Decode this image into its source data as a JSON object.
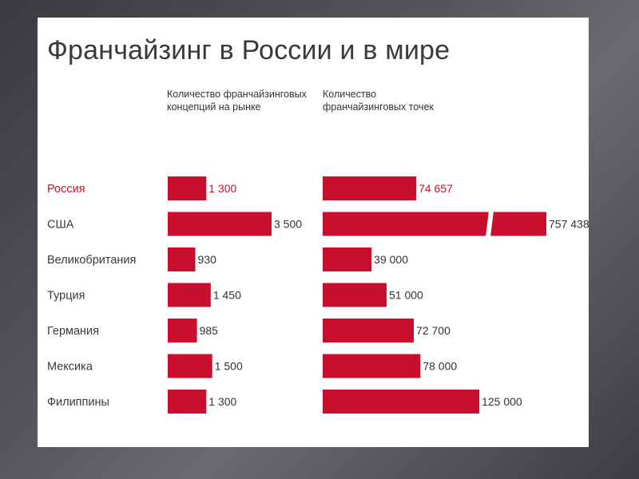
{
  "title": "Франчайзинг в России и в мире",
  "col1_header": "Количество франчайзинговых концепций на рынке",
  "col2_header": "Количество франчайзинговых точек",
  "colors": {
    "bar": "#c8102e",
    "highlight_text": "#c8102e",
    "text": "#333333"
  },
  "chart_data": [
    {
      "type": "bar",
      "orientation": "horizontal",
      "title": "Количество франчайзинговых концепций на рынке",
      "categories": [
        "Россия",
        "США",
        "Великобритания",
        "Турция",
        "Германия",
        "Мексика",
        "Филиппины"
      ],
      "values": [
        1300,
        3500,
        930,
        1450,
        985,
        1500,
        1300
      ],
      "value_labels": [
        "1 300",
        "3 500",
        "930",
        "1 450",
        "985",
        "1 500",
        "1 300"
      ],
      "highlight": "Россия"
    },
    {
      "type": "bar",
      "orientation": "horizontal",
      "title": "Количество франчайзинговых точек",
      "categories": [
        "Россия",
        "США",
        "Великобритания",
        "Турция",
        "Германия",
        "Мексика",
        "Филиппины"
      ],
      "values": [
        74657,
        757438,
        39000,
        51000,
        72700,
        78000,
        125000
      ],
      "value_labels": [
        "74 657",
        "757 438",
        "39 000",
        "51 000",
        "72 700",
        "78 000",
        "125 000"
      ],
      "highlight": "Россия",
      "broken_axis_for": "США"
    }
  ]
}
